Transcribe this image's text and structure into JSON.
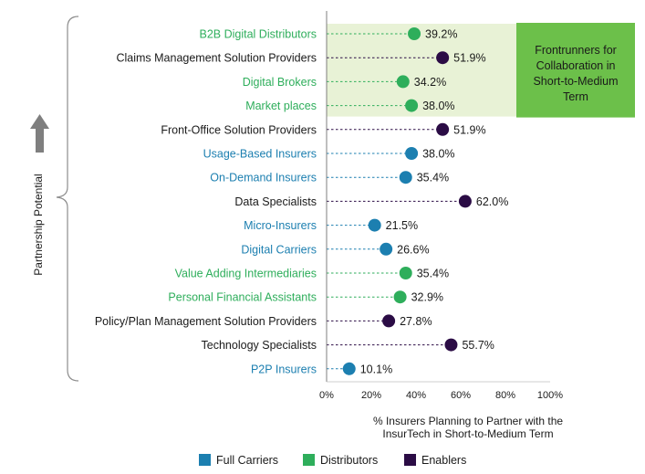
{
  "chart_data": {
    "type": "scatter",
    "ylabel": "Partnership Potential",
    "xlabel_lines": [
      "% Insurers Planning to Partner with the",
      "InsurTech in Short-to-Medium Term"
    ],
    "xlim": [
      0,
      100
    ],
    "x_ticks": [
      "0%",
      "20%",
      "40%",
      "60%",
      "80%",
      "100%"
    ],
    "x_tick_values": [
      0,
      20,
      40,
      60,
      80,
      100
    ],
    "grid": false,
    "legend_position": "bottom",
    "groups": [
      {
        "key": "full",
        "name": "Full Carriers",
        "color": "#1c7fb0"
      },
      {
        "key": "dist",
        "name": "Distributors",
        "color": "#2eae5b"
      },
      {
        "key": "enab",
        "name": "Enablers",
        "color": "#2b0c45"
      }
    ],
    "points": [
      {
        "category": "B2B Digital Distributors",
        "value": 39.2,
        "label": "39.2%",
        "group": "dist"
      },
      {
        "category": "Claims Management Solution Providers",
        "value": 51.9,
        "label": "51.9%",
        "group": "enab"
      },
      {
        "category": "Digital Brokers",
        "value": 34.2,
        "label": "34.2%",
        "group": "dist"
      },
      {
        "category": "Market places",
        "value": 38.0,
        "label": "38.0%",
        "group": "dist"
      },
      {
        "category": "Front-Office Solution Providers",
        "value": 51.9,
        "label": "51.9%",
        "group": "enab"
      },
      {
        "category": "Usage-Based Insurers",
        "value": 38.0,
        "label": "38.0%",
        "group": "full"
      },
      {
        "category": "On-Demand Insurers",
        "value": 35.4,
        "label": "35.4%",
        "group": "full"
      },
      {
        "category": "Data Specialists",
        "value": 62.0,
        "label": "62.0%",
        "group": "enab"
      },
      {
        "category": "Micro-Insurers",
        "value": 21.5,
        "label": "21.5%",
        "group": "full"
      },
      {
        "category": "Digital Carriers",
        "value": 26.6,
        "label": "26.6%",
        "group": "full"
      },
      {
        "category": "Value Adding Intermediaries",
        "value": 35.4,
        "label": "35.4%",
        "group": "dist"
      },
      {
        "category": "Personal Financial Assistants",
        "value": 32.9,
        "label": "32.9%",
        "group": "dist"
      },
      {
        "category": "Policy/Plan Management Solution Providers",
        "value": 27.8,
        "label": "27.8%",
        "group": "enab"
      },
      {
        "category": "Technology Specialists",
        "value": 55.7,
        "label": "55.7%",
        "group": "enab"
      },
      {
        "category": "P2P Insurers",
        "value": 10.1,
        "label": "10.1%",
        "group": "full"
      }
    ],
    "highlight": {
      "lines": [
        "Frontrunners for",
        "Collaboration in",
        "Short-to-Medium",
        "Term"
      ],
      "rows": [
        0,
        3
      ],
      "band_color": "#e8f2d6",
      "box_color": "#6cc04a"
    },
    "colors": {
      "category_full": "#1c7fb0",
      "category_dist": "#2eae5b",
      "category_enab": "#1a1a1a",
      "arrow": "#7f7f7f",
      "brace": "#8c8c8c"
    }
  }
}
